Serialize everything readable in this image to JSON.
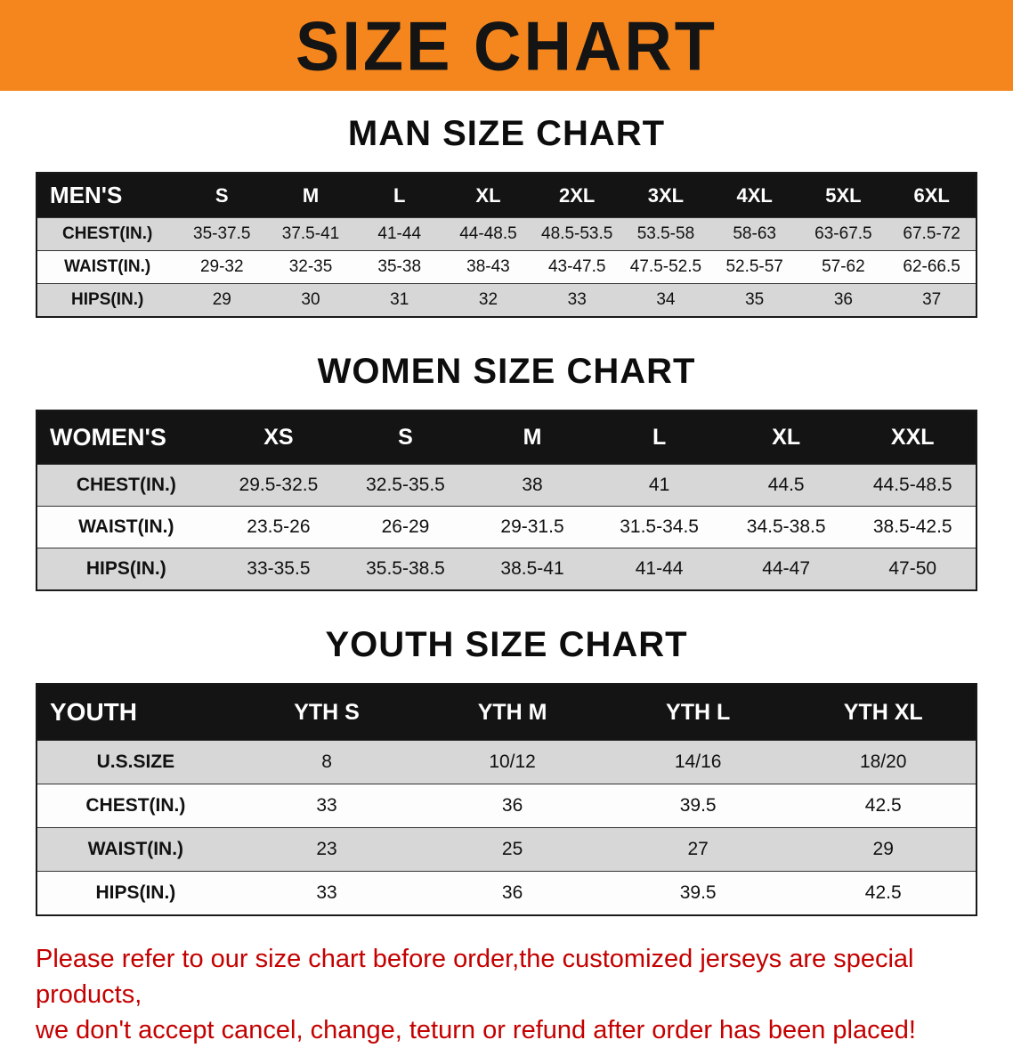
{
  "banner": {
    "title": "SIZE CHART"
  },
  "men": {
    "heading": "MAN SIZE CHART",
    "table": {
      "header": [
        "MEN'S",
        "S",
        "M",
        "L",
        "XL",
        "2XL",
        "3XL",
        "4XL",
        "5XL",
        "6XL"
      ],
      "rows": [
        [
          "CHEST(IN.)",
          "35-37.5",
          "37.5-41",
          "41-44",
          "44-48.5",
          "48.5-53.5",
          "53.5-58",
          "58-63",
          "63-67.5",
          "67.5-72"
        ],
        [
          "WAIST(IN.)",
          "29-32",
          "32-35",
          "35-38",
          "38-43",
          "43-47.5",
          "47.5-52.5",
          "52.5-57",
          "57-62",
          "62-66.5"
        ],
        [
          "HIPS(IN.)",
          "29",
          "30",
          "31",
          "32",
          "33",
          "34",
          "35",
          "36",
          "37"
        ]
      ]
    }
  },
  "women": {
    "heading": "WOMEN SIZE CHART",
    "table": {
      "header": [
        "WOMEN'S",
        "XS",
        "S",
        "M",
        "L",
        "XL",
        "XXL"
      ],
      "rows": [
        [
          "CHEST(IN.)",
          "29.5-32.5",
          "32.5-35.5",
          "38",
          "41",
          "44.5",
          "44.5-48.5"
        ],
        [
          "WAIST(IN.)",
          "23.5-26",
          "26-29",
          "29-31.5",
          "31.5-34.5",
          "34.5-38.5",
          "38.5-42.5"
        ],
        [
          "HIPS(IN.)",
          "33-35.5",
          "35.5-38.5",
          "38.5-41",
          "41-44",
          "44-47",
          "47-50"
        ]
      ]
    }
  },
  "youth": {
    "heading": "YOUTH SIZE CHART",
    "table": {
      "header": [
        "YOUTH",
        "YTH S",
        "YTH M",
        "YTH L",
        "YTH XL"
      ],
      "rows": [
        [
          "U.S.SIZE",
          "8",
          "10/12",
          "14/16",
          "18/20"
        ],
        [
          "CHEST(IN.)",
          "33",
          "36",
          "39.5",
          "42.5"
        ],
        [
          "WAIST(IN.)",
          "23",
          "25",
          "27",
          "29"
        ],
        [
          "HIPS(IN.)",
          "33",
          "36",
          "39.5",
          "42.5"
        ]
      ]
    }
  },
  "disclaimer": {
    "line1": "Please refer to our size chart before order,the customized jerseys are special products,",
    "line2": "we don't accept cancel, change, teturn or refund after order has been placed!",
    "color": "#c40000"
  },
  "colors": {
    "banner_bg": "#f5861d",
    "table_header_bg": "#141414",
    "row_stripe": "#d7d7d7",
    "heading_text": "#0d0d0d"
  }
}
